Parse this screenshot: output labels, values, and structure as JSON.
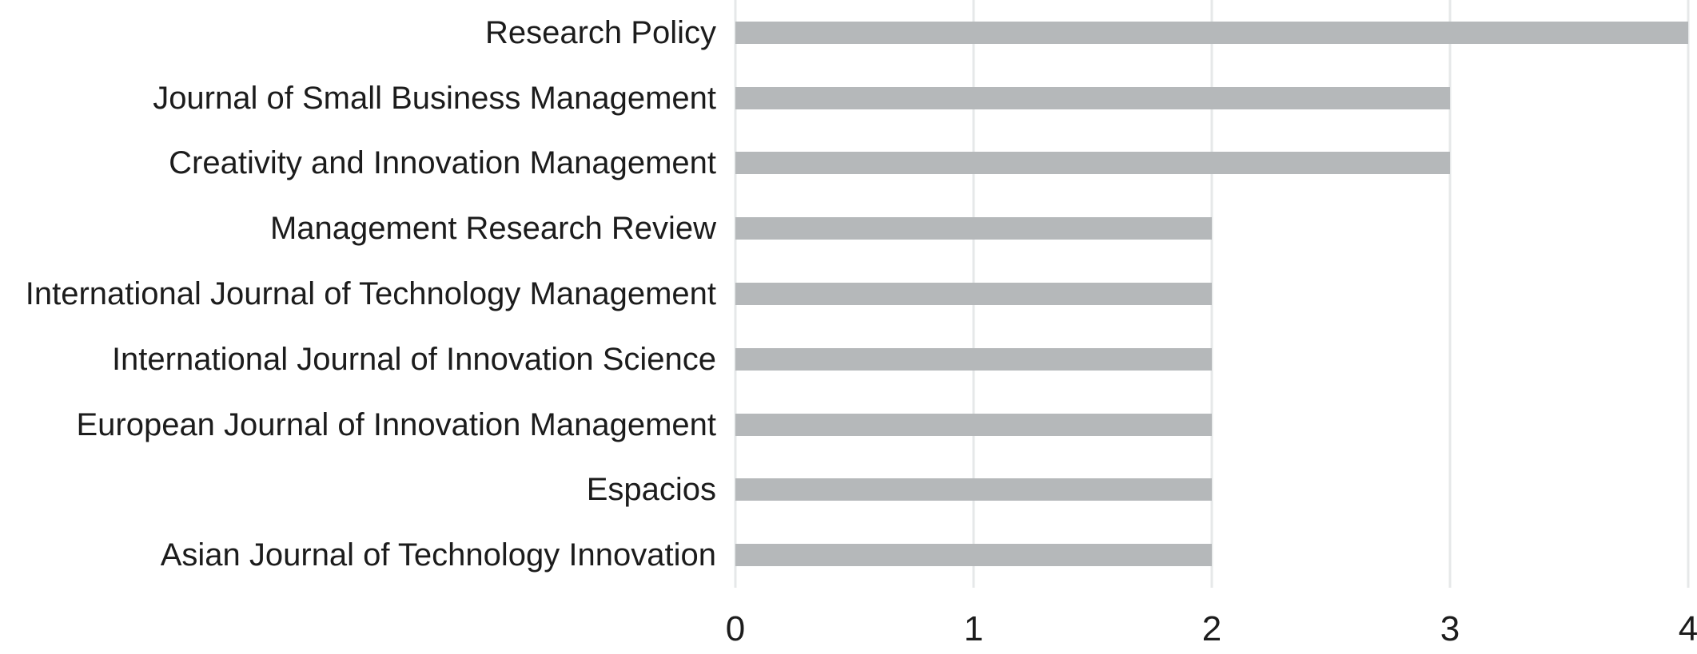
{
  "chart_data": {
    "type": "bar",
    "orientation": "horizontal",
    "title": "",
    "xlabel": "",
    "ylabel": "",
    "categories": [
      "Research Policy",
      "Journal of Small Business Management",
      "Creativity and Innovation Management",
      "Management Research Review",
      "International Journal of Technology Management",
      "International Journal of Innovation Science",
      "European Journal of Innovation Management",
      "Espacios",
      "Asian Journal of Technology Innovation"
    ],
    "values": [
      4,
      3,
      3,
      2,
      2,
      2,
      2,
      2,
      2
    ],
    "xlim": [
      0,
      4
    ],
    "xticks": [
      "0",
      "1",
      "2",
      "3",
      "4"
    ],
    "grid": "vertical-on",
    "legend": "none",
    "colors": {
      "bar": "#b5b8ba",
      "gridline": "#e6e8e9",
      "text": "#1c1c1c",
      "background": "#ffffff"
    }
  }
}
